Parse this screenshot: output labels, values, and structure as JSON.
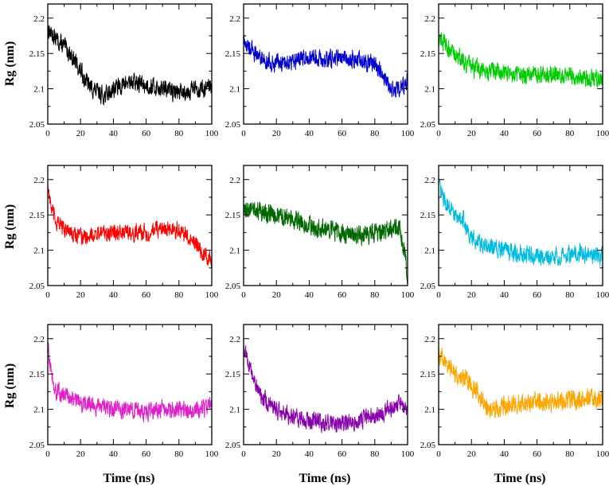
{
  "labels": {
    "ylabel": "Rg (nm)",
    "xlabel": "Time (ns)"
  },
  "chart_data": [
    {
      "type": "line",
      "color": "#000000",
      "xlim": [
        0,
        100
      ],
      "ylim": [
        2.05,
        2.22
      ],
      "x_ticks": [
        0,
        20,
        40,
        60,
        80,
        100
      ],
      "y_ticks": [
        2.05,
        2.1,
        2.15,
        2.2
      ],
      "trend": [
        [
          0,
          2.185
        ],
        [
          5,
          2.17
        ],
        [
          10,
          2.16
        ],
        [
          15,
          2.145
        ],
        [
          20,
          2.125
        ],
        [
          25,
          2.105
        ],
        [
          30,
          2.095
        ],
        [
          35,
          2.09
        ],
        [
          40,
          2.1
        ],
        [
          50,
          2.11
        ],
        [
          60,
          2.105
        ],
        [
          70,
          2.1
        ],
        [
          80,
          2.095
        ],
        [
          90,
          2.1
        ],
        [
          100,
          2.1
        ]
      ],
      "noise": 0.022
    },
    {
      "type": "line",
      "color": "#0000cc",
      "xlim": [
        0,
        100
      ],
      "ylim": [
        2.05,
        2.22
      ],
      "x_ticks": [
        0,
        20,
        40,
        60,
        80,
        100
      ],
      "y_ticks": [
        2.05,
        2.1,
        2.15,
        2.2
      ],
      "trend": [
        [
          0,
          2.165
        ],
        [
          10,
          2.145
        ],
        [
          20,
          2.135
        ],
        [
          30,
          2.14
        ],
        [
          40,
          2.145
        ],
        [
          50,
          2.14
        ],
        [
          60,
          2.145
        ],
        [
          70,
          2.14
        ],
        [
          80,
          2.135
        ],
        [
          85,
          2.12
        ],
        [
          90,
          2.1
        ],
        [
          95,
          2.1
        ],
        [
          100,
          2.11
        ]
      ],
      "noise": 0.022
    },
    {
      "type": "line",
      "color": "#00cc00",
      "xlim": [
        0,
        100
      ],
      "ylim": [
        2.05,
        2.22
      ],
      "x_ticks": [
        0,
        20,
        40,
        60,
        80,
        100
      ],
      "y_ticks": [
        2.05,
        2.1,
        2.15,
        2.2
      ],
      "trend": [
        [
          0,
          2.175
        ],
        [
          5,
          2.16
        ],
        [
          10,
          2.15
        ],
        [
          20,
          2.13
        ],
        [
          30,
          2.125
        ],
        [
          40,
          2.125
        ],
        [
          50,
          2.12
        ],
        [
          60,
          2.12
        ],
        [
          70,
          2.12
        ],
        [
          80,
          2.12
        ],
        [
          90,
          2.115
        ],
        [
          100,
          2.115
        ]
      ],
      "noise": 0.022
    },
    {
      "type": "line",
      "color": "#ff0000",
      "xlim": [
        0,
        100
      ],
      "ylim": [
        2.05,
        2.22
      ],
      "x_ticks": [
        0,
        20,
        40,
        60,
        80,
        100
      ],
      "y_ticks": [
        2.05,
        2.1,
        2.15,
        2.2
      ],
      "trend": [
        [
          0,
          2.195
        ],
        [
          2,
          2.16
        ],
        [
          5,
          2.14
        ],
        [
          10,
          2.13
        ],
        [
          20,
          2.12
        ],
        [
          40,
          2.125
        ],
        [
          60,
          2.125
        ],
        [
          70,
          2.13
        ],
        [
          80,
          2.13
        ],
        [
          85,
          2.12
        ],
        [
          90,
          2.11
        ],
        [
          95,
          2.095
        ],
        [
          100,
          2.085
        ]
      ],
      "noise": 0.02
    },
    {
      "type": "line",
      "color": "#006600",
      "xlim": [
        0,
        100
      ],
      "ylim": [
        2.05,
        2.22
      ],
      "x_ticks": [
        0,
        20,
        40,
        60,
        80,
        100
      ],
      "y_ticks": [
        2.05,
        2.1,
        2.15,
        2.2
      ],
      "trend": [
        [
          0,
          2.16
        ],
        [
          10,
          2.155
        ],
        [
          20,
          2.15
        ],
        [
          30,
          2.145
        ],
        [
          40,
          2.135
        ],
        [
          50,
          2.13
        ],
        [
          60,
          2.125
        ],
        [
          70,
          2.12
        ],
        [
          80,
          2.125
        ],
        [
          90,
          2.13
        ],
        [
          95,
          2.13
        ],
        [
          98,
          2.1
        ],
        [
          100,
          2.065
        ]
      ],
      "noise": 0.024
    },
    {
      "type": "line",
      "color": "#00bbe0",
      "xlim": [
        0,
        100
      ],
      "ylim": [
        2.05,
        2.22
      ],
      "x_ticks": [
        0,
        20,
        40,
        60,
        80,
        100
      ],
      "y_ticks": [
        2.05,
        2.1,
        2.15,
        2.2
      ],
      "trend": [
        [
          0,
          2.19
        ],
        [
          5,
          2.165
        ],
        [
          10,
          2.15
        ],
        [
          15,
          2.145
        ],
        [
          18,
          2.12
        ],
        [
          25,
          2.11
        ],
        [
          30,
          2.105
        ],
        [
          40,
          2.1
        ],
        [
          50,
          2.095
        ],
        [
          60,
          2.09
        ],
        [
          70,
          2.09
        ],
        [
          80,
          2.095
        ],
        [
          90,
          2.095
        ],
        [
          100,
          2.09
        ]
      ],
      "noise": 0.022
    },
    {
      "type": "line",
      "color": "#e020c8",
      "xlim": [
        0,
        100
      ],
      "ylim": [
        2.05,
        2.22
      ],
      "x_ticks": [
        0,
        20,
        40,
        60,
        80,
        100
      ],
      "y_ticks": [
        2.05,
        2.1,
        2.15,
        2.2
      ],
      "trend": [
        [
          0,
          2.19
        ],
        [
          2,
          2.15
        ],
        [
          5,
          2.125
        ],
        [
          10,
          2.12
        ],
        [
          20,
          2.11
        ],
        [
          30,
          2.105
        ],
        [
          40,
          2.1
        ],
        [
          50,
          2.1
        ],
        [
          60,
          2.095
        ],
        [
          70,
          2.1
        ],
        [
          80,
          2.1
        ],
        [
          90,
          2.1
        ],
        [
          100,
          2.105
        ]
      ],
      "noise": 0.022
    },
    {
      "type": "line",
      "color": "#8800aa",
      "xlim": [
        0,
        100
      ],
      "ylim": [
        2.05,
        2.22
      ],
      "x_ticks": [
        0,
        20,
        40,
        60,
        80,
        100
      ],
      "y_ticks": [
        2.05,
        2.1,
        2.15,
        2.2
      ],
      "trend": [
        [
          0,
          2.19
        ],
        [
          5,
          2.15
        ],
        [
          10,
          2.12
        ],
        [
          20,
          2.1
        ],
        [
          30,
          2.09
        ],
        [
          40,
          2.085
        ],
        [
          50,
          2.08
        ],
        [
          60,
          2.08
        ],
        [
          70,
          2.085
        ],
        [
          80,
          2.09
        ],
        [
          90,
          2.1
        ],
        [
          95,
          2.11
        ],
        [
          100,
          2.1
        ]
      ],
      "noise": 0.022
    },
    {
      "type": "line",
      "color": "#ffa500",
      "xlim": [
        0,
        100
      ],
      "ylim": [
        2.05,
        2.22
      ],
      "x_ticks": [
        0,
        20,
        40,
        60,
        80,
        100
      ],
      "y_ticks": [
        2.05,
        2.1,
        2.15,
        2.2
      ],
      "trend": [
        [
          0,
          2.18
        ],
        [
          5,
          2.165
        ],
        [
          10,
          2.15
        ],
        [
          20,
          2.135
        ],
        [
          25,
          2.12
        ],
        [
          30,
          2.1
        ],
        [
          40,
          2.105
        ],
        [
          50,
          2.11
        ],
        [
          60,
          2.11
        ],
        [
          70,
          2.11
        ],
        [
          80,
          2.115
        ],
        [
          90,
          2.115
        ],
        [
          95,
          2.115
        ],
        [
          100,
          2.11
        ]
      ],
      "noise": 0.024
    }
  ]
}
